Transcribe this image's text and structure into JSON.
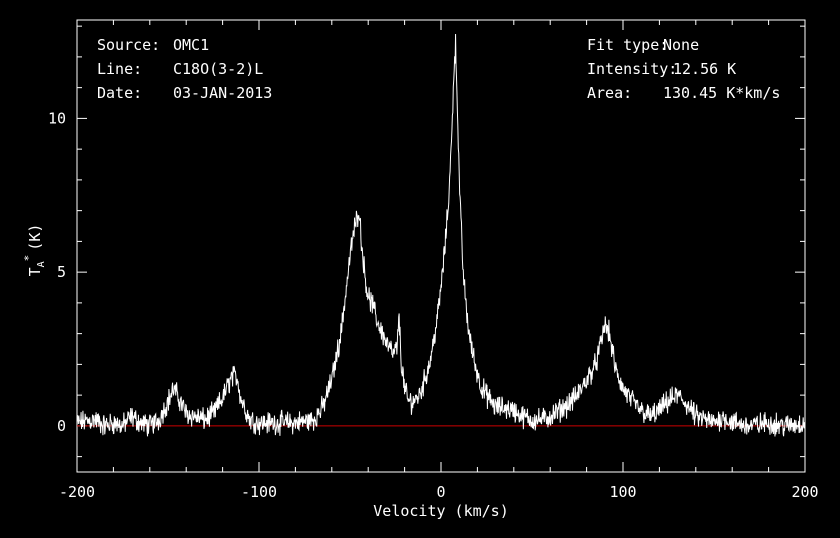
{
  "header_left": [
    {
      "key": "Source:",
      "value": "OMC1"
    },
    {
      "key": "Line:",
      "value": "C18O(3-2)L"
    },
    {
      "key": "Date:",
      "value": "03-JAN-2013"
    }
  ],
  "header_right": [
    {
      "key": "Fit type:",
      "value": "None"
    },
    {
      "key": "Intensity:",
      "value": "12.56 K"
    },
    {
      "key": "Area:",
      "value": "130.45 K*km/s"
    }
  ],
  "colors": {
    "background": "#000000",
    "foreground": "#ffffff",
    "baseline": "#cc0000"
  },
  "chart_data": {
    "type": "line",
    "xlabel": "Velocity (km/s)",
    "ylabel_main": "T",
    "ylabel_sub": "A",
    "ylabel_sup": "*",
    "ylabel_unit": "(K)",
    "xlim": [
      -200,
      200
    ],
    "ylim": [
      -1.5,
      13.2
    ],
    "x_ticks": [
      -200,
      -100,
      0,
      100,
      200
    ],
    "x_tick_labels": [
      "-200",
      "-100",
      "0",
      "100",
      "200"
    ],
    "y_ticks": [
      0,
      5,
      10
    ],
    "y_tick_labels": [
      "0",
      "5",
      "10"
    ],
    "baseline_y": 0,
    "grid": false,
    "series": [
      {
        "x": [
          -200,
          -190,
          -185,
          -180,
          -175,
          -170,
          -165,
          -160,
          -155,
          -150,
          -147,
          -144,
          -140,
          -135,
          -130,
          -125,
          -120,
          -115,
          -112,
          -110,
          -105,
          -100,
          -90,
          -80,
          -70,
          -65,
          -60,
          -55,
          -52,
          -50,
          -48,
          -46,
          -45,
          -44,
          -42,
          -40,
          -38,
          -35,
          -32,
          -30,
          -28,
          -26,
          -24,
          -23,
          -22,
          -20,
          -18,
          -15,
          -12,
          -10,
          -8,
          -6,
          -4,
          -2,
          0,
          2,
          4,
          6,
          7,
          8,
          9,
          10,
          12,
          14,
          16,
          18,
          20,
          22,
          25,
          30,
          35,
          40,
          45,
          50,
          55,
          60,
          65,
          70,
          75,
          80,
          85,
          88,
          90,
          92,
          94,
          96,
          100,
          105,
          110,
          115,
          120,
          125,
          130,
          135,
          140,
          145,
          150,
          155,
          160,
          170,
          180,
          190,
          200
        ],
        "y": [
          0.1,
          0.2,
          0.0,
          0.1,
          0.0,
          0.3,
          0.1,
          0.0,
          0.2,
          0.8,
          1.2,
          0.9,
          0.4,
          0.3,
          0.2,
          0.4,
          0.9,
          1.6,
          1.6,
          0.9,
          0.2,
          0.1,
          0.1,
          0.1,
          0.2,
          0.6,
          1.5,
          3.0,
          4.5,
          5.5,
          6.3,
          6.8,
          7.1,
          6.2,
          5.0,
          4.2,
          4.0,
          3.4,
          3.0,
          2.7,
          2.5,
          2.3,
          2.6,
          3.6,
          2.2,
          1.2,
          0.8,
          0.8,
          1.0,
          1.3,
          1.7,
          2.1,
          2.8,
          3.5,
          4.5,
          5.7,
          7.2,
          9.5,
          11.5,
          12.4,
          10.5,
          8.0,
          5.2,
          3.7,
          2.8,
          2.2,
          1.7,
          1.3,
          1.0,
          0.6,
          0.6,
          0.5,
          0.3,
          0.2,
          0.2,
          0.3,
          0.5,
          0.7,
          1.0,
          1.5,
          2.0,
          2.7,
          3.3,
          3.1,
          2.5,
          1.8,
          1.2,
          0.8,
          0.5,
          0.3,
          0.5,
          0.8,
          1.0,
          0.7,
          0.3,
          0.2,
          0.1,
          0.3,
          0.1,
          0.0,
          0.1,
          0.0,
          0.1
        ]
      }
    ]
  }
}
